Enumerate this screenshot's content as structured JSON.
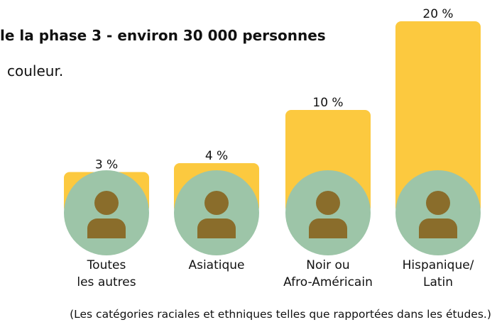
{
  "chart_data": {
    "type": "bar",
    "title": "le la phase 3 - environ 30 000 personnes",
    "subtitle": "couleur.",
    "categories": [
      "Toutes\nles autres",
      "Asiatique",
      "Noir ou\nAfro-Américain",
      "Hispanique/\nLatin"
    ],
    "values": [
      3,
      4,
      10,
      20
    ],
    "value_labels": [
      "3 %",
      "4 %",
      "10 %",
      "20 %"
    ],
    "color": "#fcc93f",
    "ylim": [
      0,
      20
    ],
    "note": "(Les catégories raciales et ethniques telles que rapportées dans les études.)"
  }
}
